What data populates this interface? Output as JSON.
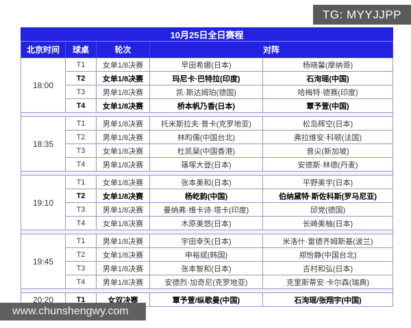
{
  "badge": {
    "text": "TG: MYYJJPP"
  },
  "watermark": {
    "text": "www.chunshengwy.com"
  },
  "colors": {
    "header_blue": "#2222e0",
    "border_purple": "#9494c4",
    "badge_gray": "#5a5a5a",
    "watermark_gray": "#606060",
    "spacer_row": "#f2f2fb"
  },
  "table": {
    "title": "10月25日全日赛程",
    "columns": {
      "time": "北京时间",
      "table_no": "球桌",
      "round": "轮次",
      "matchup": "对阵"
    },
    "groups": [
      {
        "time": "18:00",
        "rows": [
          {
            "table_no": "T1",
            "round": "女单1/8决赛",
            "player_a": "早田希娜(日本)",
            "player_b": "杨晓馨(摩纳哥)",
            "bold": false
          },
          {
            "table_no": "T2",
            "round": "女单1/8决赛",
            "player_a": "玛尼卡·巴特拉(印度)",
            "player_b": "石洵瑶(中国)",
            "bold": true
          },
          {
            "table_no": "T3",
            "round": "男单1/8决赛",
            "player_a": "凯·斯达姆珀(德国)",
            "player_b": "哈梅特·德赛(印度)",
            "bold": false
          },
          {
            "table_no": "T4",
            "round": "女单1/8决赛",
            "player_a": "桥本帆乃香(日本)",
            "player_b": "覃予萱(中国)",
            "bold": true
          }
        ]
      },
      {
        "time": "18:35",
        "rows": [
          {
            "table_no": "T1",
            "round": "男单1/8决赛",
            "player_a": "托米斯拉夫·普卡(克罗地亚)",
            "player_b": "松岛辉空(日本)",
            "bold": false
          },
          {
            "table_no": "T2",
            "round": "男单1/8决赛",
            "player_a": "林昀儒(中国台北)",
            "player_b": "弗拉维安·科顿(法国)",
            "bold": false
          },
          {
            "table_no": "T3",
            "round": "女单1/8决赛",
            "player_a": "杜凯琹(中国香港)",
            "player_b": "曾尖(新加坡)",
            "bold": false
          },
          {
            "table_no": "T4",
            "round": "男单1/8决赛",
            "player_a": "篠塚大登(日本)",
            "player_b": "安德斯·林德(丹麦)",
            "bold": false
          }
        ]
      },
      {
        "time": "19:10",
        "rows": [
          {
            "table_no": "T1",
            "round": "女单1/8决赛",
            "player_a": "张本美和(日本)",
            "player_b": "平野美宇(日本)",
            "bold": false
          },
          {
            "table_no": "T2",
            "round": "女单1/8决赛",
            "player_a": "杨屹韵(中国)",
            "player_b": "伯纳黛特·斯佐科斯(罗马尼亚)",
            "bold": true
          },
          {
            "table_no": "T3",
            "round": "男单1/8决赛",
            "player_a": "曼纳弗·维卡诗·塔卡(印度)",
            "player_b": "邱党(德国)",
            "bold": false
          },
          {
            "table_no": "T4",
            "round": "女单1/8决赛",
            "player_a": "木原美悠(日本)",
            "player_b": "长崎美柚(日本)",
            "bold": false
          }
        ]
      },
      {
        "time": "19:45",
        "rows": [
          {
            "table_no": "T1",
            "round": "男单1/8决赛",
            "player_a": "宇田幸矢(日本)",
            "player_b": "米洛什·雷德齐姆斯基(波兰)",
            "bold": false
          },
          {
            "table_no": "T2",
            "round": "女单1/8决赛",
            "player_a": "申裕斌(韩国)",
            "player_b": "郑怡静(中国台北)",
            "bold": false
          },
          {
            "table_no": "T3",
            "round": "男单1/8决赛",
            "player_a": "张本智和(日本)",
            "player_b": "吉村和弘(日本)",
            "bold": false
          },
          {
            "table_no": "T4",
            "round": "男单1/8决赛",
            "player_a": "安德烈·加奇尼(克罗地亚)",
            "player_b": "克里斯蒂安·卡尔森(瑞典)",
            "bold": false
          }
        ]
      },
      {
        "time": "20:20",
        "rows": [
          {
            "table_no": "T1",
            "round": "女双决赛",
            "player_a": "覃予萱/纵歌曼(中国)",
            "player_b": "石洵瑶/张翔宇(中国)",
            "bold": true
          }
        ]
      }
    ]
  }
}
